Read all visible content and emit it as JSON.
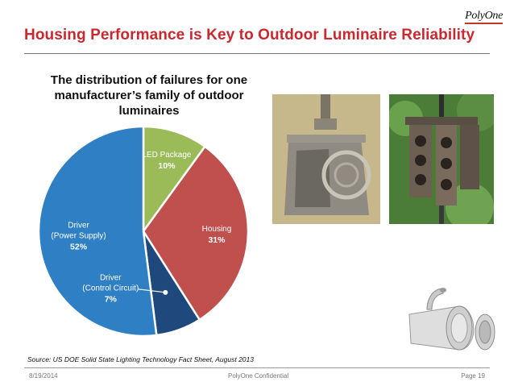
{
  "header": {
    "logo_text": "PolyOne",
    "title": "Housing Performance is Key to Outdoor Luminaire Reliability"
  },
  "chart_data": {
    "type": "pie",
    "title": "The distribution of failures for one manufacturer’s family of outdoor luminaires",
    "slices": [
      {
        "label": "LED Package",
        "value": 10,
        "value_label": "10%",
        "color": "#9bbb59"
      },
      {
        "label": "Housing",
        "value": 31,
        "value_label": "31%",
        "color": "#c0504d"
      },
      {
        "label": "Driver (Control Circuit)",
        "value": 7,
        "value_label": "7%",
        "color": "#1f497d"
      },
      {
        "label": "Driver (Power Supply)",
        "value": 52,
        "value_label": "52%",
        "color": "#2f7fc4"
      }
    ],
    "start_angle_deg": 0,
    "direction": "clockwise",
    "label_lines": {
      "LED Package": [
        "LED Package"
      ],
      "Housing": [
        "Housing"
      ],
      "Driver (Control Circuit)": [
        "Driver",
        "(Control Circuit)"
      ],
      "Driver (Power Supply)": [
        "Driver",
        "(Power Supply)"
      ]
    },
    "source": "Source: US DOE Solid State Lighting Technology Fact Sheet, August 2013"
  },
  "images": {
    "photo1": "lantern-photo",
    "photo2": "traffic-signal-photo",
    "photo3": "fixture-photo"
  },
  "footer": {
    "date": "8/19/2014",
    "confidential": "PolyOne Confidential",
    "page": "Page 19"
  }
}
